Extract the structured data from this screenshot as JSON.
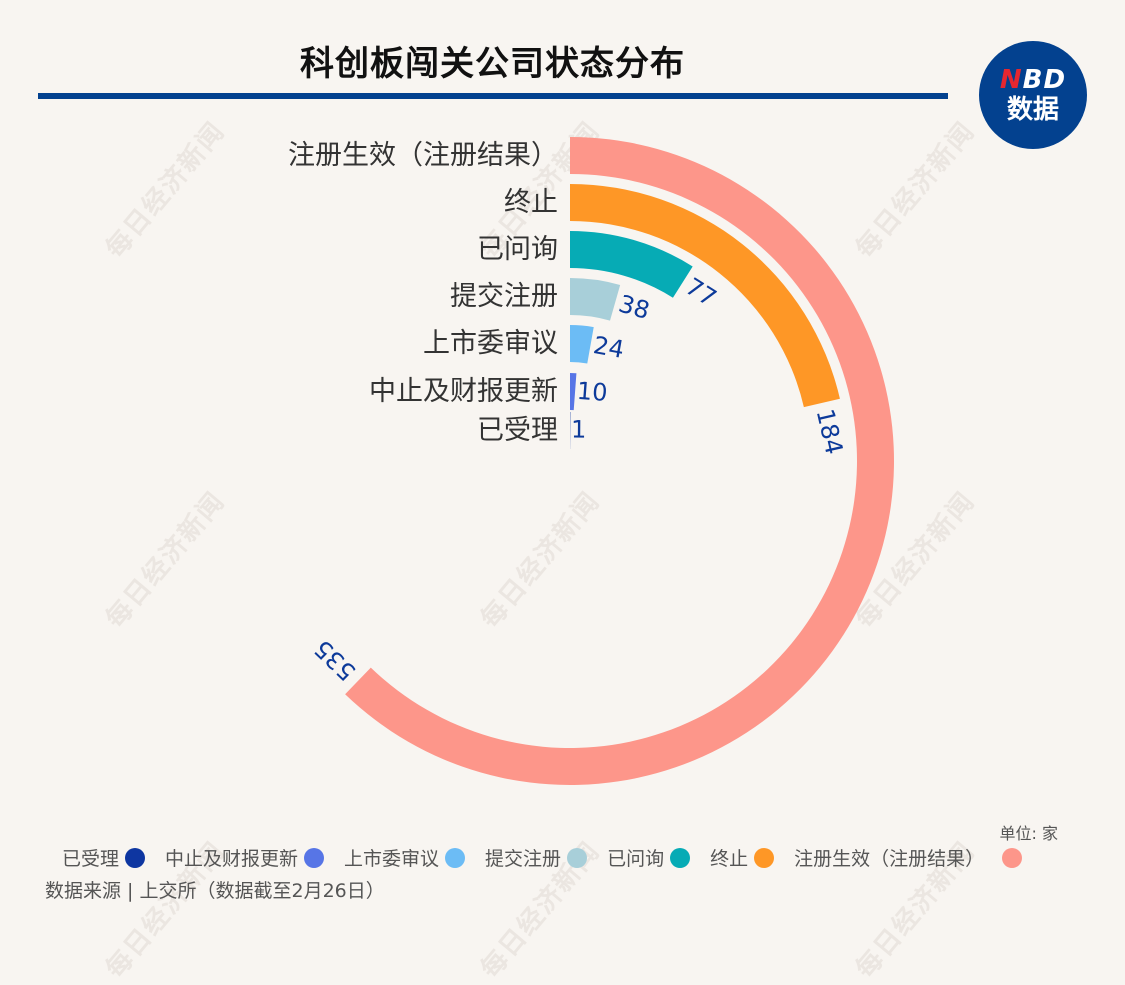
{
  "header": {
    "title": "科创板闯关公司状态分布",
    "logo_top": "NBD",
    "logo_bottom": "数据"
  },
  "watermark_text": "每日经济新闻",
  "unit_label": "单位: 家",
  "source_label": "数据来源 | 上交所（数据截至2月26日）",
  "colors": {
    "background": "#f8f5f1",
    "accent": "#03418f",
    "value_label": "#0d3a9a"
  },
  "chart_data": {
    "type": "radial-bar",
    "title": "科创板闯关公司状态分布",
    "unit": "家",
    "max_angle_value": 860,
    "center": [
      570,
      461
    ],
    "categories": [
      "注册生效（注册结果）",
      "终止",
      "已问询",
      "提交注册",
      "上市委审议",
      "中止及财报更新",
      "已受理"
    ],
    "values": [
      535,
      184,
      77,
      38,
      24,
      10,
      1
    ],
    "colors": [
      "#fd968a",
      "#fe9726",
      "#06abb5",
      "#a8cfd9",
      "#6cbcf5",
      "#5775e6",
      "#0e36a1"
    ],
    "legend": [
      {
        "label": "已受理",
        "color": "#0e36a1"
      },
      {
        "label": "中止及财报更新",
        "color": "#5775e6"
      },
      {
        "label": "上市委审议",
        "color": "#6cbcf5"
      },
      {
        "label": "提交注册",
        "color": "#a8cfd9"
      },
      {
        "label": "已问询",
        "color": "#06abb5"
      },
      {
        "label": "终止",
        "color": "#fe9726"
      },
      {
        "label": "注册生效（注册结果）",
        "color": "#fd968a"
      }
    ],
    "legend_position": "bottom",
    "source": "上交所（数据截至2月26日）"
  }
}
